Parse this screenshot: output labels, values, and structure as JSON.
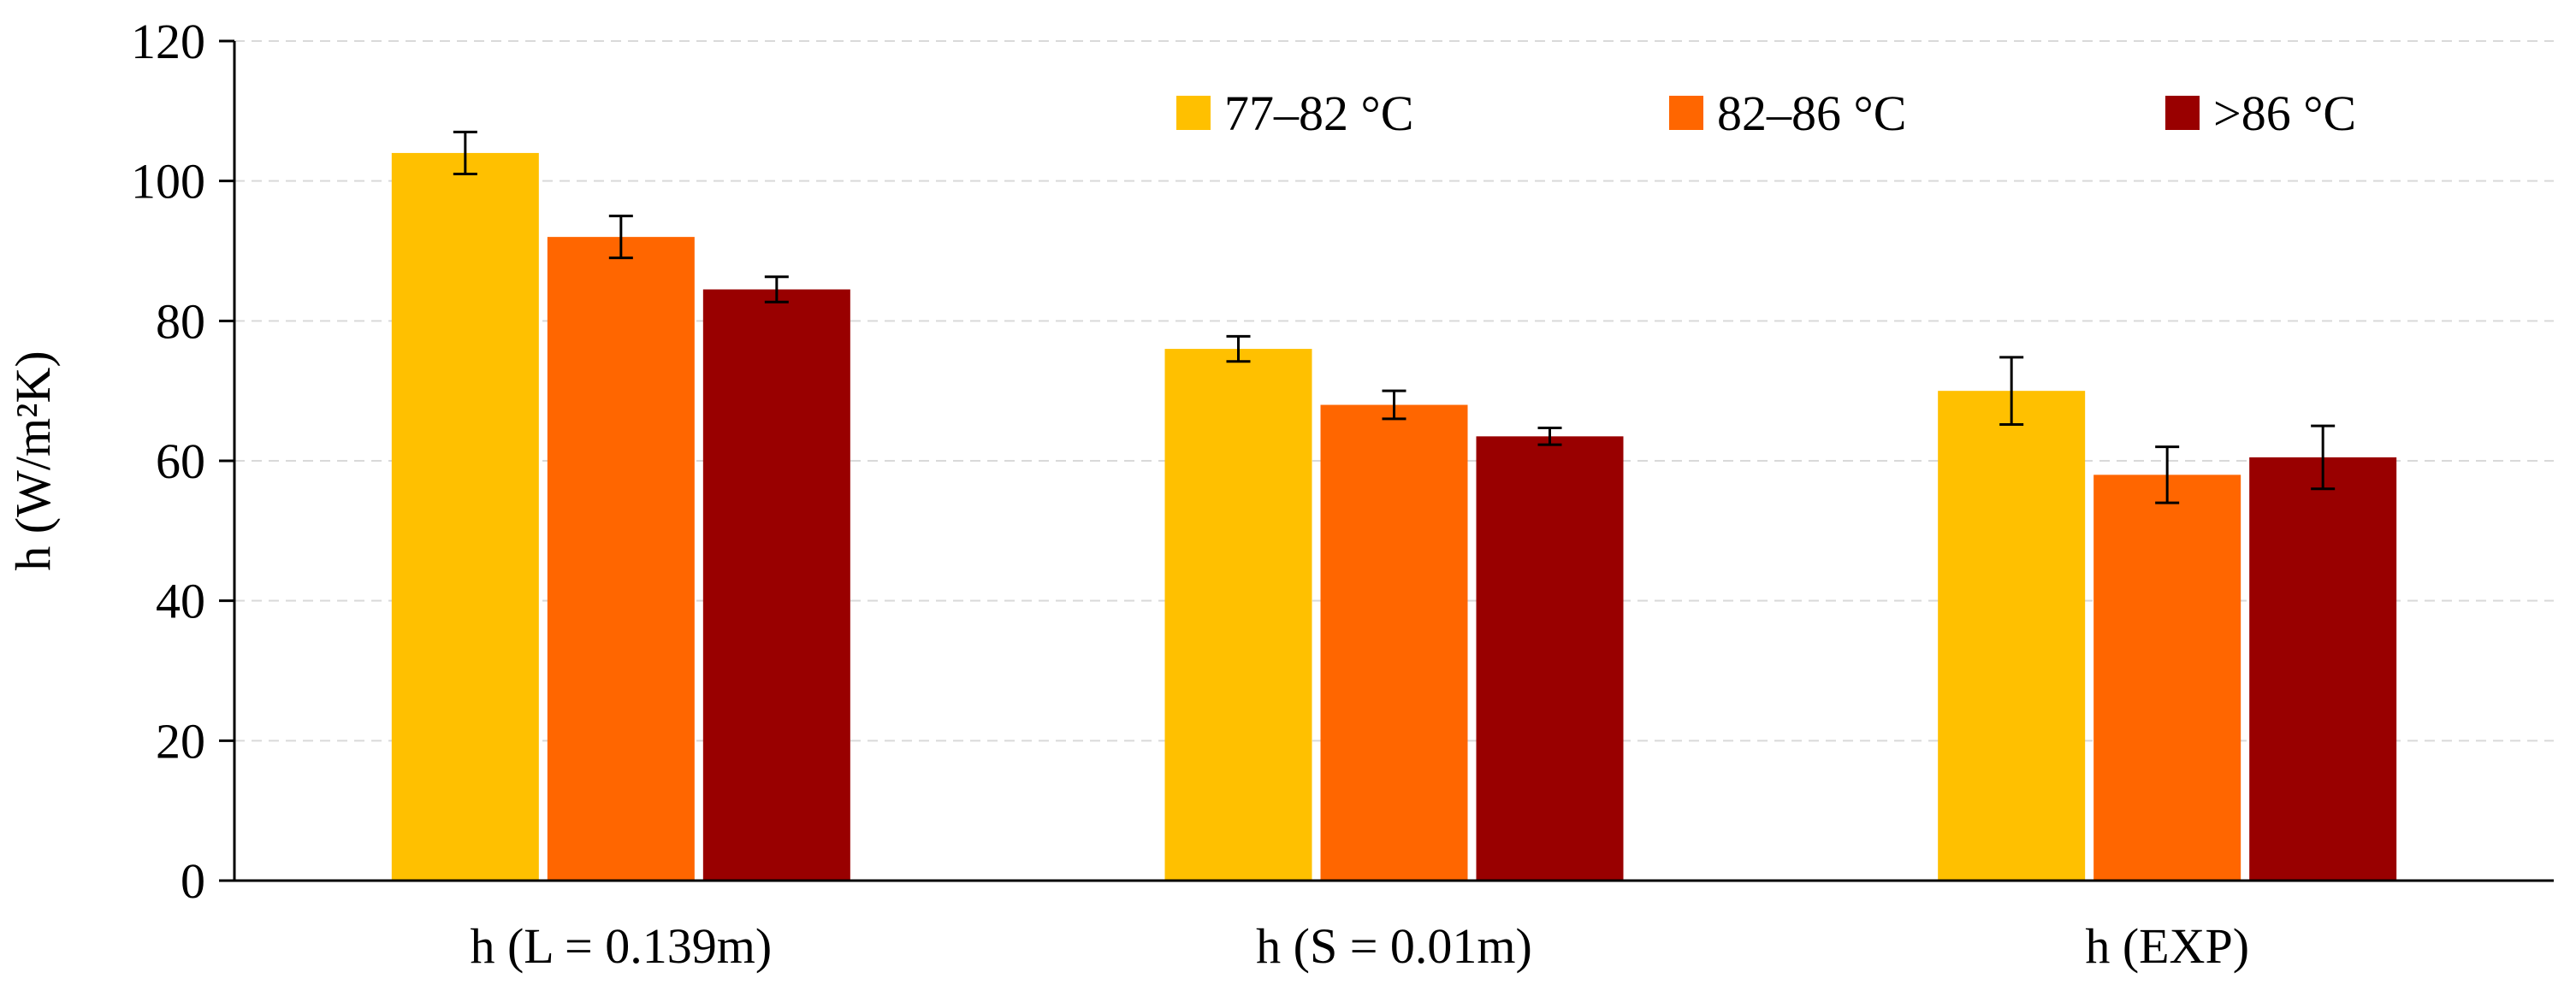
{
  "chart_data": {
    "type": "bar",
    "title": "",
    "xlabel": "",
    "ylabel": "h (W/m²K)",
    "ylim": [
      0,
      120
    ],
    "yticks": [
      0,
      20,
      40,
      60,
      80,
      100,
      120
    ],
    "grid": true,
    "legend_position": "top-right",
    "categories": [
      "h (L = 0.139m)",
      "h (S = 0.01m)",
      "h (EXP)"
    ],
    "series": [
      {
        "name": "77–82 °C",
        "color": "#FFC000",
        "values": [
          104,
          76,
          70
        ],
        "errors": [
          3,
          1.8,
          4.8
        ]
      },
      {
        "name": "82–86 °C",
        "color": "#FF6600",
        "values": [
          92,
          68,
          58
        ],
        "errors": [
          3,
          2,
          4
        ]
      },
      {
        "name": ">86 °C",
        "color": "#990000",
        "values": [
          84.5,
          63.5,
          60.5
        ],
        "errors": [
          1.8,
          1.2,
          4.5
        ]
      }
    ]
  }
}
